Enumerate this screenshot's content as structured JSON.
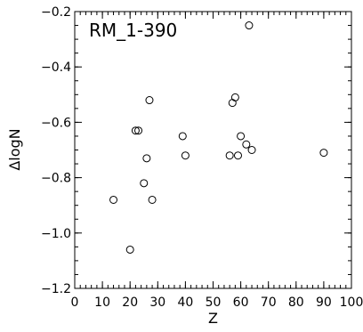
{
  "chart_data": {
    "type": "scatter",
    "annotation": "RM_1-390",
    "xlabel": "Z",
    "ylabel": "ΔlogN",
    "xlim": [
      0,
      100
    ],
    "ylim": [
      -1.2,
      -0.2
    ],
    "xticks": [
      0,
      10,
      20,
      30,
      40,
      50,
      60,
      70,
      80,
      90,
      100
    ],
    "yticks": [
      -1.2,
      -1.0,
      -0.8,
      -0.6,
      -0.4,
      -0.2
    ],
    "ytick_labels": [
      "−1.2",
      "−1.0",
      "−0.8",
      "−0.6",
      "−0.4",
      "−0.2"
    ],
    "x_minor_step": 2,
    "y_minor_step": 0.05,
    "grid": false,
    "marker": "open-circle",
    "series": [
      {
        "points": [
          {
            "x": 14,
            "y": -0.88
          },
          {
            "x": 20,
            "y": -1.06
          },
          {
            "x": 22,
            "y": -0.63
          },
          {
            "x": 23,
            "y": -0.63
          },
          {
            "x": 25,
            "y": -0.82
          },
          {
            "x": 26,
            "y": -0.73
          },
          {
            "x": 27,
            "y": -0.52
          },
          {
            "x": 28,
            "y": -0.88
          },
          {
            "x": 39,
            "y": -0.65
          },
          {
            "x": 40,
            "y": -0.72
          },
          {
            "x": 56,
            "y": -0.72
          },
          {
            "x": 57,
            "y": -0.53
          },
          {
            "x": 58,
            "y": -0.51
          },
          {
            "x": 59,
            "y": -0.72
          },
          {
            "x": 60,
            "y": -0.65
          },
          {
            "x": 62,
            "y": -0.68
          },
          {
            "x": 63,
            "y": -0.25
          },
          {
            "x": 64,
            "y": -0.7
          },
          {
            "x": 90,
            "y": -0.71
          }
        ]
      }
    ]
  }
}
